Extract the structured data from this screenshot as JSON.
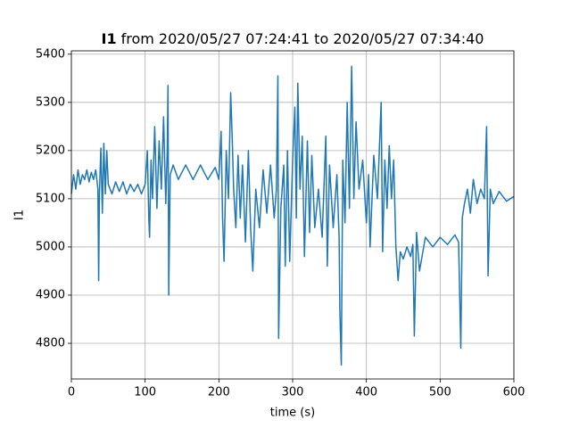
{
  "chart_data": {
    "type": "line",
    "title": {
      "bold": "I1",
      "rest": "from 2020/05/27 07:24:41 to 2020/05/27 07:34:40"
    },
    "x_label": "time (s)",
    "y_label": "I1",
    "xlim": [
      0,
      600
    ],
    "xticks": [
      0,
      100,
      200,
      300,
      400,
      500,
      600
    ],
    "ylim": [
      4726,
      5407
    ],
    "yticks": [
      4800,
      4900,
      5000,
      5100,
      5200,
      5300,
      5400
    ],
    "grid": true,
    "x": [
      0,
      3,
      6,
      9,
      12,
      15,
      18,
      21,
      24,
      27,
      30,
      33,
      36,
      37,
      38,
      40,
      42,
      44,
      46,
      48,
      50,
      55,
      60,
      65,
      70,
      75,
      80,
      85,
      90,
      95,
      100,
      103,
      105,
      106,
      108,
      110,
      113,
      116,
      119,
      122,
      125,
      128,
      130,
      131,
      132,
      134,
      138,
      145,
      155,
      165,
      175,
      185,
      195,
      200,
      203,
      205,
      207,
      210,
      213,
      216,
      218,
      220,
      223,
      226,
      229,
      232,
      236,
      240,
      243,
      246,
      250,
      255,
      260,
      265,
      270,
      275,
      278,
      280,
      281,
      284,
      288,
      290,
      293,
      296,
      300,
      303,
      305,
      307,
      310,
      313,
      316,
      320,
      323,
      326,
      330,
      335,
      340,
      345,
      347,
      350,
      355,
      360,
      363,
      364,
      366,
      368,
      371,
      374,
      377,
      380,
      383,
      386,
      390,
      395,
      400,
      403,
      405,
      410,
      415,
      420,
      422,
      425,
      428,
      431,
      434,
      437,
      440,
      443,
      446,
      450,
      455,
      460,
      463,
      465,
      468,
      472,
      480,
      490,
      500,
      510,
      520,
      525,
      528,
      530,
      533,
      537,
      541,
      545,
      550,
      555,
      560,
      563,
      565,
      568,
      572,
      580,
      590,
      600
    ],
    "series": [
      {
        "color": "#1f77b4",
        "values": [
          5110,
          5150,
          5120,
          5160,
          5130,
          5150,
          5140,
          5160,
          5135,
          5155,
          5140,
          5160,
          5120,
          4930,
          5110,
          5205,
          5070,
          5215,
          5110,
          5200,
          5130,
          5110,
          5135,
          5115,
          5135,
          5110,
          5130,
          5115,
          5130,
          5110,
          5130,
          5200,
          5060,
          5020,
          5180,
          5100,
          5250,
          5080,
          5220,
          5120,
          5270,
          5090,
          5200,
          5335,
          4900,
          5150,
          5170,
          5140,
          5170,
          5140,
          5170,
          5140,
          5165,
          5140,
          5240,
          5060,
          4970,
          5200,
          5100,
          5320,
          5230,
          5120,
          5040,
          5190,
          5060,
          5170,
          5010,
          5200,
          5040,
          4950,
          5120,
          5040,
          5160,
          5070,
          5170,
          5060,
          5120,
          5355,
          4810,
          5080,
          5170,
          4960,
          5200,
          4970,
          5180,
          5290,
          5060,
          5340,
          5120,
          5230,
          4980,
          5220,
          5030,
          5190,
          5040,
          5120,
          5020,
          5230,
          4960,
          5170,
          5040,
          5150,
          5020,
          4870,
          4755,
          5180,
          5050,
          5300,
          5080,
          5375,
          5100,
          5260,
          5120,
          5180,
          5050,
          5150,
          5000,
          5190,
          5100,
          5300,
          4990,
          5180,
          5080,
          5210,
          5100,
          5180,
          5000,
          4930,
          4990,
          4975,
          5000,
          4980,
          5005,
          4815,
          5030,
          4950,
          5020,
          5000,
          5020,
          5005,
          5025,
          5010,
          4790,
          5060,
          5090,
          5120,
          5070,
          5140,
          5090,
          5120,
          5100,
          5250,
          4940,
          5120,
          5090,
          5115,
          5095,
          5105
        ]
      }
    ]
  }
}
